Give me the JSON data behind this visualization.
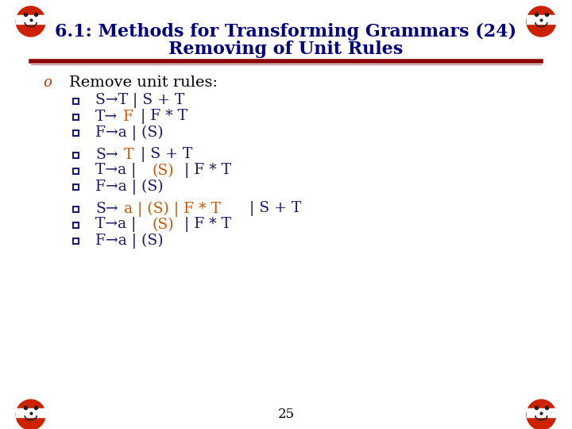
{
  "title_line1": "6.1: Methods for Transforming Grammars (24)",
  "title_line2": "Removing of Unit Rules",
  "title_color": "#000080",
  "title_fontsize": 16,
  "bg_color": "#ffffff",
  "sep_color1": "#8B0000",
  "sep_color2": "#b08080",
  "bullet_main": "Remove unit rules:",
  "bullet_main_marker_color": "#cc3300",
  "bullet_text_color": "#000080",
  "blue_color": "#1a1a6e",
  "orange_color": "#cc5500",
  "square_bullet_color": "#1a1a6e",
  "page_number": "25",
  "footer_color": "#000000",
  "footer_fontsize": 12,
  "face_color": "#cc2200",
  "groups": [
    [
      {
        "parts": [
          [
            "blue",
            "S→T | S + T"
          ]
        ]
      },
      {
        "parts": [
          [
            "blue",
            "T→"
          ],
          [
            "orange",
            "F"
          ],
          [
            "blue",
            " | F * T"
          ]
        ]
      },
      {
        "parts": [
          [
            "blue",
            "F→a | (S)"
          ]
        ]
      }
    ],
    [
      {
        "parts": [
          [
            "blue",
            "S→"
          ],
          [
            "orange",
            "T"
          ],
          [
            "blue",
            " | S + T"
          ]
        ]
      },
      {
        "parts": [
          [
            "blue",
            "T→a | "
          ],
          [
            "orange",
            "(S)"
          ],
          [
            "blue",
            " | F * T"
          ]
        ]
      },
      {
        "parts": [
          [
            "blue",
            "F→a | (S)"
          ]
        ]
      }
    ],
    [
      {
        "parts": [
          [
            "blue",
            "S→"
          ],
          [
            "orange",
            "a | (S) | F * T"
          ],
          [
            "blue",
            " | S + T"
          ]
        ]
      },
      {
        "parts": [
          [
            "blue",
            "T→a | "
          ],
          [
            "orange",
            "(S)"
          ],
          [
            "blue",
            " | F * T"
          ]
        ]
      },
      {
        "parts": [
          [
            "blue",
            "F→a | (S)"
          ]
        ]
      }
    ]
  ]
}
